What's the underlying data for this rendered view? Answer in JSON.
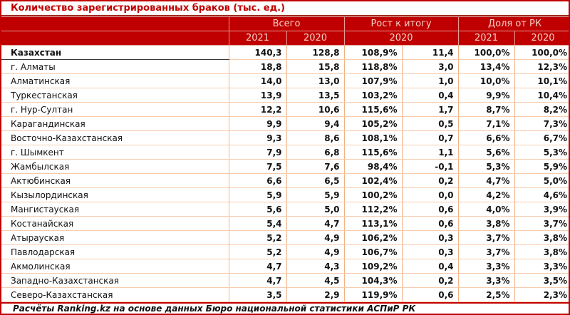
{
  "title": "Количество зарегистрированных браков (тыс. ед.)",
  "colors": {
    "header_background": "#C00000",
    "title_text": "#C00000",
    "header_text": "#F2CFC5",
    "cell_border": "#F4B183",
    "row_border": "#F8CBAD",
    "frame_border": "#C00000",
    "total_row_underline": "#3A3A3A",
    "data_text": "#111111"
  },
  "table": {
    "groups": [
      {
        "label": "Всего"
      },
      {
        "label": "Рост к итогу"
      },
      {
        "label": "Доля от РК"
      }
    ],
    "year_cells": [
      "2021",
      "2020",
      "2020",
      "2021",
      "2020"
    ],
    "rows": [
      {
        "name": "Казахстан",
        "bold": true,
        "values": [
          "140,3",
          "128,8",
          "108,9%",
          "11,4",
          "100,0%",
          "100,0%"
        ]
      },
      {
        "name": "г. Алматы",
        "bold": false,
        "values": [
          "18,8",
          "15,8",
          "118,8%",
          "3,0",
          "13,4%",
          "12,3%"
        ]
      },
      {
        "name": "Алматинская",
        "bold": false,
        "values": [
          "14,0",
          "13,0",
          "107,9%",
          "1,0",
          "10,0%",
          "10,1%"
        ]
      },
      {
        "name": "Туркестанская",
        "bold": false,
        "values": [
          "13,9",
          "13,5",
          "103,2%",
          "0,4",
          "9,9%",
          "10,4%"
        ]
      },
      {
        "name": "г. Нур-Султан",
        "bold": false,
        "values": [
          "12,2",
          "10,6",
          "115,6%",
          "1,7",
          "8,7%",
          "8,2%"
        ]
      },
      {
        "name": "Карагандинская",
        "bold": false,
        "values": [
          "9,9",
          "9,4",
          "105,2%",
          "0,5",
          "7,1%",
          "7,3%"
        ]
      },
      {
        "name": "Восточно-Казахстанская",
        "bold": false,
        "values": [
          "9,3",
          "8,6",
          "108,1%",
          "0,7",
          "6,6%",
          "6,7%"
        ]
      },
      {
        "name": "г. Шымкент",
        "bold": false,
        "values": [
          "7,9",
          "6,8",
          "115,6%",
          "1,1",
          "5,6%",
          "5,3%"
        ]
      },
      {
        "name": "Жамбылская",
        "bold": false,
        "values": [
          "7,5",
          "7,6",
          "98,4%",
          "-0,1",
          "5,3%",
          "5,9%"
        ]
      },
      {
        "name": "Актюбинская",
        "bold": false,
        "values": [
          "6,6",
          "6,5",
          "102,4%",
          "0,2",
          "4,7%",
          "5,0%"
        ]
      },
      {
        "name": "Кызылординская",
        "bold": false,
        "values": [
          "5,9",
          "5,9",
          "100,2%",
          "0,0",
          "4,2%",
          "4,6%"
        ]
      },
      {
        "name": "Мангистауская",
        "bold": false,
        "values": [
          "5,6",
          "5,0",
          "112,2%",
          "0,6",
          "4,0%",
          "3,9%"
        ]
      },
      {
        "name": "Костанайская",
        "bold": false,
        "values": [
          "5,4",
          "4,7",
          "113,1%",
          "0,6",
          "3,8%",
          "3,7%"
        ]
      },
      {
        "name": "Атырауская",
        "bold": false,
        "values": [
          "5,2",
          "4,9",
          "106,2%",
          "0,3",
          "3,7%",
          "3,8%"
        ]
      },
      {
        "name": "Павлодарская",
        "bold": false,
        "values": [
          "5,2",
          "4,9",
          "106,7%",
          "0,3",
          "3,7%",
          "3,8%"
        ]
      },
      {
        "name": "Акмолинская",
        "bold": false,
        "values": [
          "4,7",
          "4,3",
          "109,2%",
          "0,4",
          "3,3%",
          "3,3%"
        ]
      },
      {
        "name": "Западно-Казахстанская",
        "bold": false,
        "values": [
          "4,7",
          "4,5",
          "104,3%",
          "0,2",
          "3,3%",
          "3,5%"
        ]
      },
      {
        "name": "Северо-Казахстанская",
        "bold": false,
        "values": [
          "3,5",
          "2,9",
          "119,9%",
          "0,6",
          "2,5%",
          "2,3%"
        ]
      }
    ]
  },
  "footer": "Расчёты Ranking.kz на основе данных Бюро национальной статистики АСПиР РК"
}
